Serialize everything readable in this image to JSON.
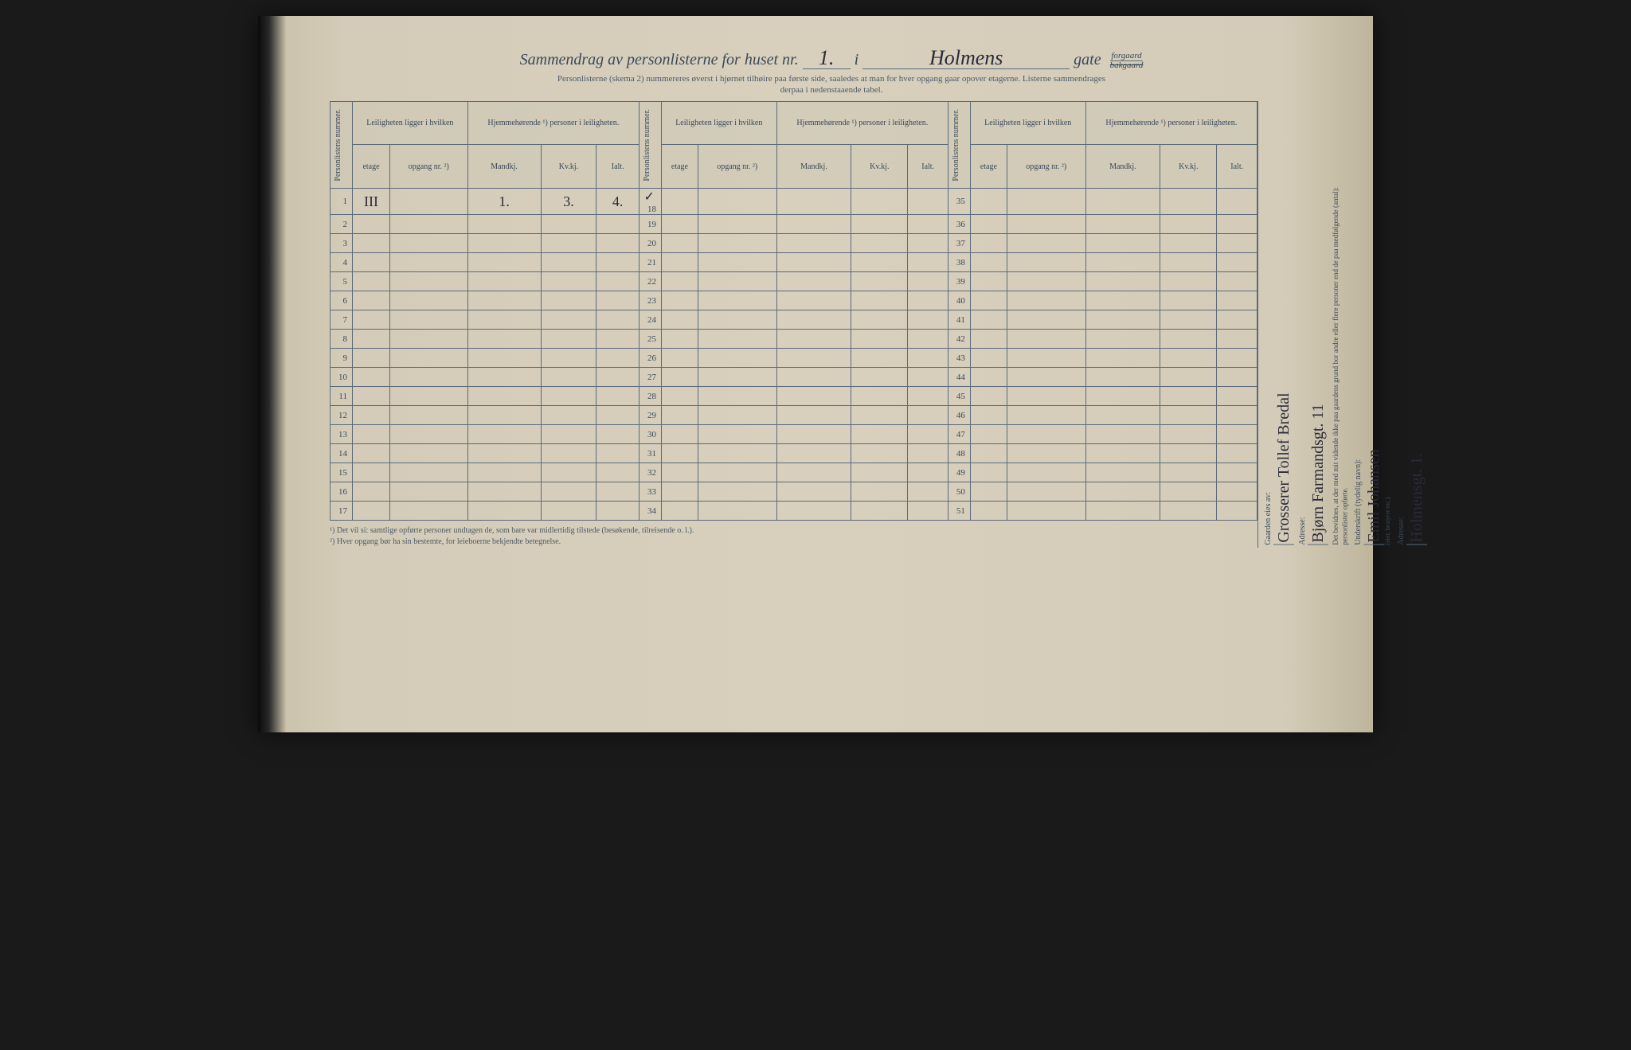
{
  "header": {
    "title_prefix": "Sammendrag av personlisterne for huset nr.",
    "huset_nr": "1.",
    "i_label": "i",
    "gate_name": "Holmens",
    "gate_label": "gate",
    "forgaard": "forgaard",
    "bakgaard": "bakgaard",
    "subtitle_line1": "Personlisterne (skema 2) nummereres øverst i hjørnet tilhøire paa første side, saaledes at man for hver opgang gaar opover etagerne. Listerne sammendrages",
    "subtitle_line2": "derpaa i nedenstaaende tabel."
  },
  "columns": {
    "personlistens_nummer": "Personlistens nummer.",
    "leiligheten_ligger": "Leiligheten ligger i hvilken",
    "hjemmehorende": "Hjemmehørende ¹) personer i leiligheten.",
    "etage": "etage",
    "opgang": "opgang nr. ²)",
    "mandkj": "Mandkj.",
    "kvkj": "Kv.kj.",
    "ialt": "Ialt."
  },
  "data_row": {
    "num": "1",
    "etage": "III",
    "opgang": "",
    "mandkj": "1.",
    "kvkj": "3.",
    "ialt": "4.",
    "check": "✓"
  },
  "row_numbers_col1": [
    "1",
    "2",
    "3",
    "4",
    "5",
    "6",
    "7",
    "8",
    "9",
    "10",
    "11",
    "12",
    "13",
    "14",
    "15",
    "16",
    "17"
  ],
  "row_numbers_col2": [
    "18",
    "19",
    "20",
    "21",
    "22",
    "23",
    "24",
    "25",
    "26",
    "27",
    "28",
    "29",
    "30",
    "31",
    "32",
    "33",
    "34"
  ],
  "row_numbers_col3": [
    "35",
    "36",
    "37",
    "38",
    "39",
    "40",
    "41",
    "42",
    "43",
    "44",
    "45",
    "46",
    "47",
    "48",
    "49",
    "50",
    "51"
  ],
  "footnotes": {
    "n1": "¹) Det vil si: samtlige opførte personer undtagen de, som bare var midlertidig tilstede (besøkende, tilreisende o. l.).",
    "n2": "²) Hver opgang bør ha sin bestemte, for leieboerne bekjendte betegnelse."
  },
  "right_panel": {
    "gaarden_eies_label": "Gaarden eies av:",
    "gaarden_eies_value": "Grosserer Tollef Bredal",
    "adresse1_label": "Adresse:",
    "adresse1_value": "Bjørn Farmandsgt. 11",
    "bevidnes_text": "Det bevidnes, at der med mit vidende ikke paa gaardens grund bor andre eller flere personer end de paa medfølgende (antal):",
    "personlister_label": "personlister opførte.",
    "underskrift_label": "Underskrift (tydelig navn):",
    "underskrift_value": "Emil Johansen",
    "bestyrer_note": "(eier, bestyrer etc.)",
    "adresse2_label": "Adresse:",
    "adresse2_value": "Holmensgt. 1."
  }
}
